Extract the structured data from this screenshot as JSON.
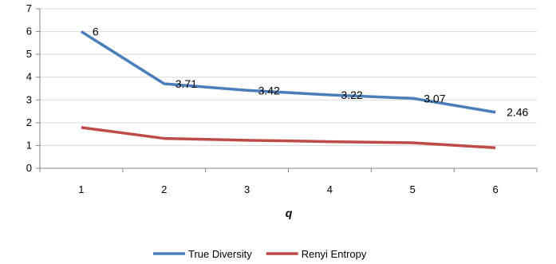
{
  "chart_data": {
    "type": "line",
    "title": "",
    "xlabel": "q",
    "ylabel": "",
    "x": [
      1,
      2,
      3,
      4,
      5,
      6
    ],
    "ylim": [
      0,
      7
    ],
    "yticks": [
      0,
      1,
      2,
      3,
      4,
      5,
      6,
      7
    ],
    "grid": "horizontal",
    "legend": "bottom",
    "series": [
      {
        "name": "True Diversity",
        "color": "#4a7ebb",
        "values": [
          6,
          3.71,
          3.42,
          3.22,
          3.07,
          2.46
        ],
        "labels": [
          "6",
          "3.71",
          "3.42",
          "3.22",
          "3.07",
          "2.46"
        ]
      },
      {
        "name": "Renyi Entropy",
        "color": "#be4b48",
        "values": [
          1.79,
          1.31,
          1.23,
          1.17,
          1.12,
          0.9
        ]
      }
    ]
  }
}
